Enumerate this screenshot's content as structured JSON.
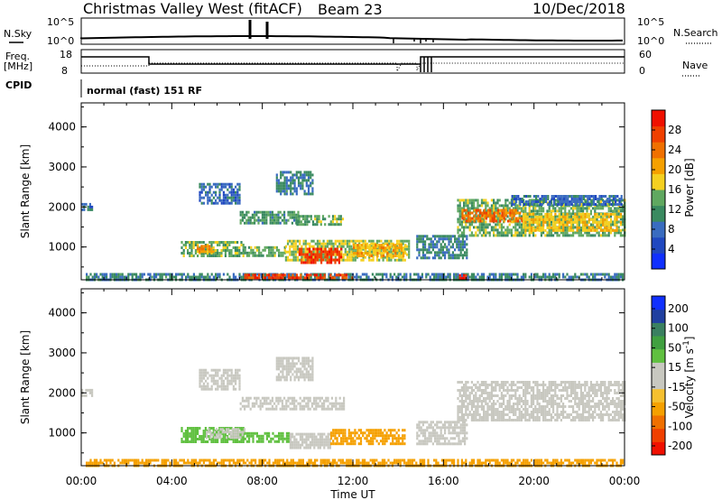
{
  "header": {
    "title": "Christmas Valley West (fitACF)",
    "beam": "Beam 23",
    "date": "10/Dec/2018"
  },
  "strips": {
    "nsky_label": "N.Sky",
    "nsky_ticks": [
      "10^5",
      "10^0"
    ],
    "nsearch_label": "N.Search",
    "nsearch_ticks": [
      "10^5",
      "10^0"
    ],
    "freq_label_1": "Freq.",
    "freq_label_2": "[MHz]",
    "freq_ticks": [
      "18",
      "8"
    ],
    "nave_label": "Nave",
    "nave_ticks": [
      "60",
      "0"
    ],
    "cpid_label": "CPID",
    "cpid_value": "normal (fast) 151 RF"
  },
  "colors": {
    "power": [
      "#1030ff",
      "#2048c0",
      "#3a6cc0",
      "#3a8a60",
      "#60a860",
      "#f5d020",
      "#f5a000",
      "#f07000",
      "#f04000",
      "#f01000"
    ],
    "velocity": [
      "#f01000",
      "#f04000",
      "#f07000",
      "#f5a000",
      "#f5c030",
      "#c8c8c0",
      "#c8c8c0",
      "#60c040",
      "#40a040",
      "#3a8060",
      "#2040a0",
      "#1030ff"
    ]
  },
  "chart_data": [
    {
      "type": "heatmap",
      "panel": "power",
      "xlabel": "Time UT",
      "ylabel": "Slant Range [km]",
      "x_ticks": [
        "00:00",
        "04:00",
        "08:00",
        "12:00",
        "16:00",
        "20:00",
        "00:00"
      ],
      "xlim": [
        0,
        24
      ],
      "y_ticks": [
        "1000",
        "2000",
        "3000",
        "4000"
      ],
      "y_tick_values": [
        1000,
        2000,
        3000,
        4000
      ],
      "ylim": [
        180,
        4600
      ],
      "colorbar_label": "Power [dB]",
      "colorbar_ticks": [
        "4",
        "8",
        "12",
        "16",
        "20",
        "24",
        "28"
      ],
      "colorbar_range": [
        0,
        32
      ],
      "regions": [
        {
          "x": [
            0.2,
            23.9
          ],
          "y": [
            200,
            350
          ],
          "value": 10
        },
        {
          "x": [
            7.2,
            12.0
          ],
          "y": [
            250,
            330
          ],
          "value": 27
        },
        {
          "x": [
            16.6,
            17.0
          ],
          "y": [
            220,
            320
          ],
          "value": 28
        },
        {
          "x": [
            0.0,
            0.5
          ],
          "y": [
            1900,
            2100
          ],
          "value": 8
        },
        {
          "x": [
            4.4,
            7.2
          ],
          "y": [
            750,
            1150
          ],
          "value": 14
        },
        {
          "x": [
            5.1,
            5.9
          ],
          "y": [
            880,
            1050
          ],
          "value": 22
        },
        {
          "x": [
            7.2,
            9.0
          ],
          "y": [
            760,
            1020
          ],
          "value": 14
        },
        {
          "x": [
            9.0,
            14.5
          ],
          "y": [
            680,
            1180
          ],
          "value": 16
        },
        {
          "x": [
            9.6,
            11.5
          ],
          "y": [
            620,
            980
          ],
          "value": 28
        },
        {
          "x": [
            12.0,
            14.3
          ],
          "y": [
            780,
            1080
          ],
          "value": 20
        },
        {
          "x": [
            7.0,
            9.6
          ],
          "y": [
            1620,
            1900
          ],
          "value": 12
        },
        {
          "x": [
            9.5,
            11.6
          ],
          "y": [
            1570,
            1800
          ],
          "value": 14
        },
        {
          "x": [
            8.6,
            10.2
          ],
          "y": [
            2350,
            2900
          ],
          "value": 10
        },
        {
          "x": [
            5.2,
            7.0
          ],
          "y": [
            2100,
            2600
          ],
          "value": 8
        },
        {
          "x": [
            14.8,
            17.0
          ],
          "y": [
            700,
            1300
          ],
          "value": 10
        },
        {
          "x": [
            16.6,
            24.0
          ],
          "y": [
            1300,
            2200
          ],
          "value": 14
        },
        {
          "x": [
            16.8,
            19.5
          ],
          "y": [
            1650,
            1950
          ],
          "value": 24
        },
        {
          "x": [
            19.5,
            23.8
          ],
          "y": [
            1400,
            1850
          ],
          "value": 18
        },
        {
          "x": [
            19.0,
            23.9
          ],
          "y": [
            2050,
            2300
          ],
          "value": 8
        }
      ]
    },
    {
      "type": "heatmap",
      "panel": "velocity",
      "xlabel": "Time UT",
      "ylabel": "Slant Range [km]",
      "x_ticks": [
        "00:00",
        "04:00",
        "08:00",
        "12:00",
        "16:00",
        "20:00",
        "00:00"
      ],
      "xlim": [
        0,
        24
      ],
      "y_ticks": [
        "1000",
        "2000",
        "3000",
        "4000"
      ],
      "y_tick_values": [
        1000,
        2000,
        3000,
        4000
      ],
      "ylim": [
        180,
        4600
      ],
      "colorbar_label": "Velocity [m s^-1]",
      "colorbar_ticks": [
        "200",
        "100",
        "50",
        "15",
        "-15",
        "-50",
        "-100",
        "-200"
      ],
      "regions": [
        {
          "x": [
            0.2,
            23.9
          ],
          "y": [
            200,
            350
          ],
          "value": -40
        },
        {
          "x": [
            0.0,
            0.5
          ],
          "y": [
            1900,
            2100
          ],
          "value": 0
        },
        {
          "x": [
            4.4,
            7.2
          ],
          "y": [
            750,
            1150
          ],
          "value": 30
        },
        {
          "x": [
            5.5,
            7.2
          ],
          "y": [
            880,
            1120
          ],
          "value": 0
        },
        {
          "x": [
            7.2,
            9.2
          ],
          "y": [
            760,
            1020
          ],
          "value": 35
        },
        {
          "x": [
            9.2,
            11.0
          ],
          "y": [
            650,
            1000
          ],
          "value": 0
        },
        {
          "x": [
            11.0,
            14.3
          ],
          "y": [
            700,
            1100
          ],
          "value": -40
        },
        {
          "x": [
            14.8,
            17.0
          ],
          "y": [
            700,
            1300
          ],
          "value": 0
        },
        {
          "x": [
            7.0,
            11.6
          ],
          "y": [
            1570,
            1900
          ],
          "value": 0
        },
        {
          "x": [
            8.6,
            10.2
          ],
          "y": [
            2350,
            2900
          ],
          "value": 0
        },
        {
          "x": [
            5.2,
            7.0
          ],
          "y": [
            2100,
            2600
          ],
          "value": 0
        },
        {
          "x": [
            16.6,
            24.0
          ],
          "y": [
            1300,
            2300
          ],
          "value": 0
        }
      ]
    }
  ]
}
